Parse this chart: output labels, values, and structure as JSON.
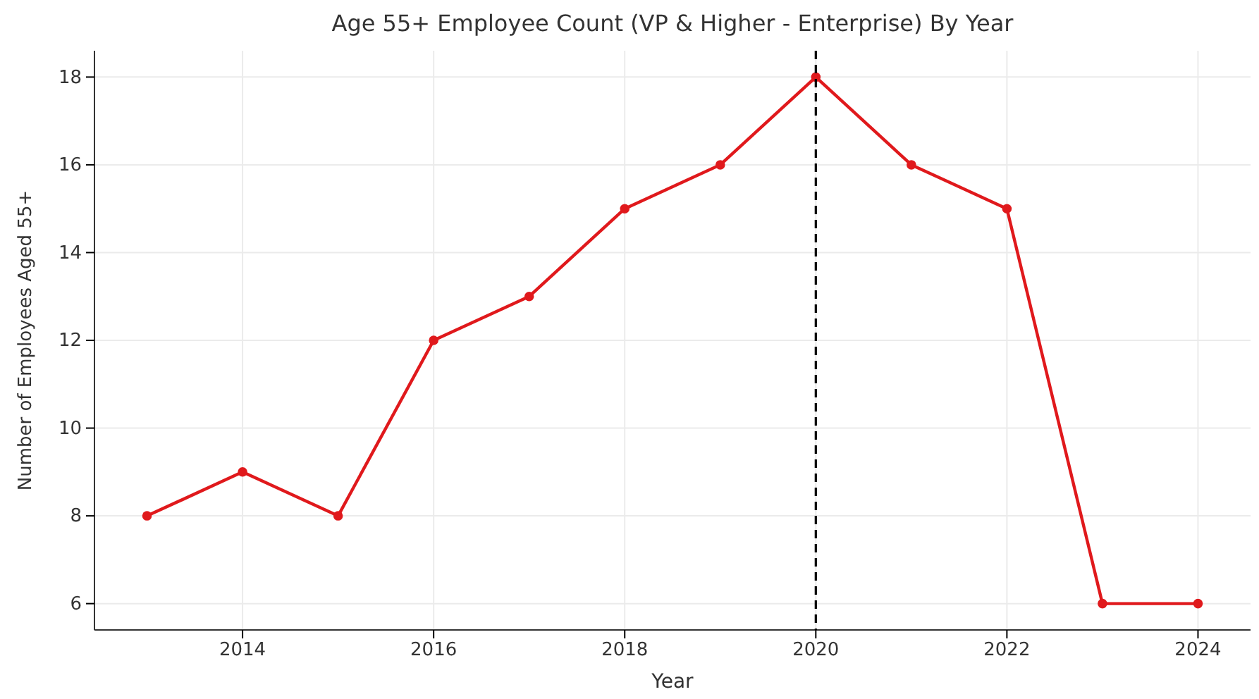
{
  "chart_data": {
    "type": "line",
    "title": "Age 55+ Employee Count (VP & Higher - Enterprise) By Year",
    "xlabel": "Year",
    "ylabel": "Number of Employees Aged 55+",
    "x": [
      2013,
      2014,
      2015,
      2016,
      2017,
      2018,
      2019,
      2020,
      2021,
      2022,
      2023,
      2024
    ],
    "series": [
      {
        "color": "#e0191c",
        "values": [
          8,
          9,
          8,
          12,
          13,
          15,
          16,
          18,
          16,
          15,
          6,
          6
        ]
      }
    ],
    "xlim": [
      2012.45,
      2024.55
    ],
    "xticks": [
      2014,
      2016,
      2018,
      2020,
      2022,
      2024
    ],
    "ylim": [
      5.4,
      18.6
    ],
    "yticks": [
      6,
      8,
      10,
      12,
      14,
      16,
      18
    ],
    "grid": true,
    "marker": "circle",
    "line_style": "solid",
    "ref_lines": [
      {
        "axis": "x",
        "value": 2020,
        "color": "#000000",
        "line_style": "dashed"
      }
    ]
  }
}
